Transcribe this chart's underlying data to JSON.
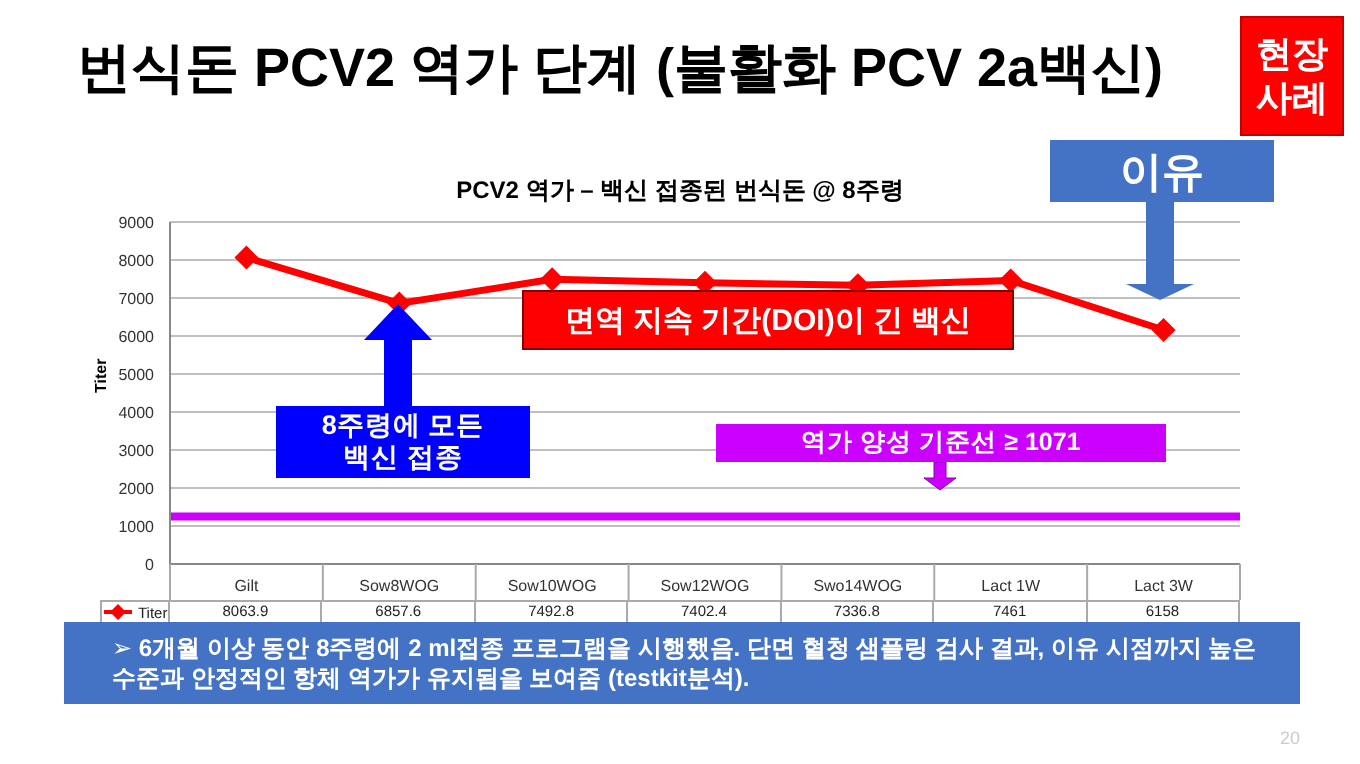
{
  "chart_data": {
    "type": "line",
    "title": "번식돈 PCV2 역가 단계 (불활화 PCV 2a백신)",
    "subtitle": "PCV2 역가 – 백신 접종된 번식돈 @ 8주령",
    "ylabel": "Titer",
    "categories": [
      "Gilt",
      "Sow8WOG",
      "Sow10WOG",
      "Sow12WOG",
      "Swo14WOG",
      "Lact 1W",
      "Lact 3W"
    ],
    "series": [
      {
        "name": "Titer",
        "color": "#ff0000",
        "values": [
          8063.9,
          6857.6,
          7492.8,
          7402.4,
          7336.8,
          7461,
          6158
        ]
      }
    ],
    "ylim": [
      0,
      9000
    ],
    "yticks": [
      0,
      1000,
      2000,
      3000,
      4000,
      5000,
      6000,
      7000,
      8000,
      9000
    ],
    "grid": "y",
    "marker": "diamond",
    "line_style": "solid",
    "data_labels": true,
    "ref_lines": [
      {
        "axis": "y",
        "value": 1250,
        "color": "#cc00ff"
      }
    ],
    "annotations": [
      "현장 사례",
      "이유",
      "면역 지속 기간(DOI)이 긴 백신",
      "8주령에 모든 백신 접종",
      "역가 양성 기준선 ≥ 1071",
      "➢ 6개월 이상 동안 8주령에 2 ml접종 프로그램을 시행했음. 단면 혈청 샘플링 검사 결과, 이유 시점까지 높은 수준과 안정적인 항체 역가가 유지됨을 보여줌 (testkit분석).",
      "20"
    ]
  }
}
